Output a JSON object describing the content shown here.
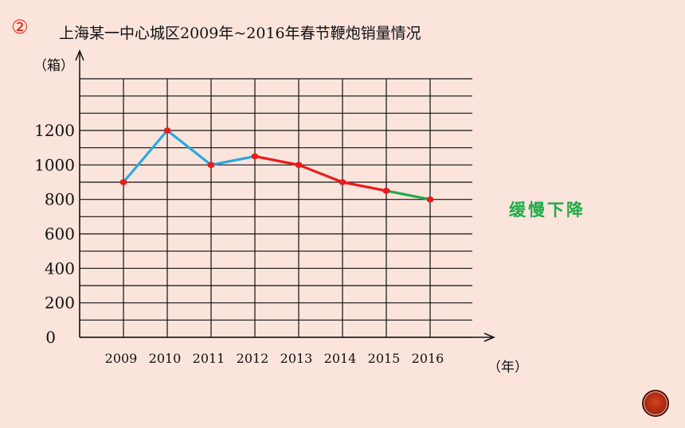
{
  "slide": {
    "number_mark": "②",
    "title": "上海某一中心城区2009年~2016年春节鞭炮销量情况",
    "y_unit": "（箱）",
    "x_unit": "（年）",
    "annotation": "缓慢下降"
  },
  "colors": {
    "background": "#fbe4dc",
    "segment_rise_fall": "#2aa8e0",
    "segment_decline": "#e81c1c",
    "segment_slow_decline": "#24a84a",
    "point": "#e81c1c",
    "annotation": "#1faa48"
  },
  "chart_data": {
    "type": "line",
    "title": "上海某一中心城区2009年~2016年春节鞭炮销量情况",
    "xlabel": "（年）",
    "ylabel": "（箱）",
    "categories": [
      "2009",
      "2010",
      "2011",
      "2012",
      "2013",
      "2014",
      "2015",
      "2016"
    ],
    "values": [
      900,
      1200,
      1000,
      1050,
      1000,
      900,
      850,
      800
    ],
    "y_ticks": [
      "0",
      "200",
      "400",
      "600",
      "800",
      "1000",
      "1200"
    ],
    "ylim": [
      0,
      1500
    ],
    "grid": true,
    "segment_colors": [
      "#2aa8e0",
      "#2aa8e0",
      "#2aa8e0",
      "#e81c1c",
      "#e81c1c",
      "#e81c1c",
      "#24a84a"
    ]
  }
}
